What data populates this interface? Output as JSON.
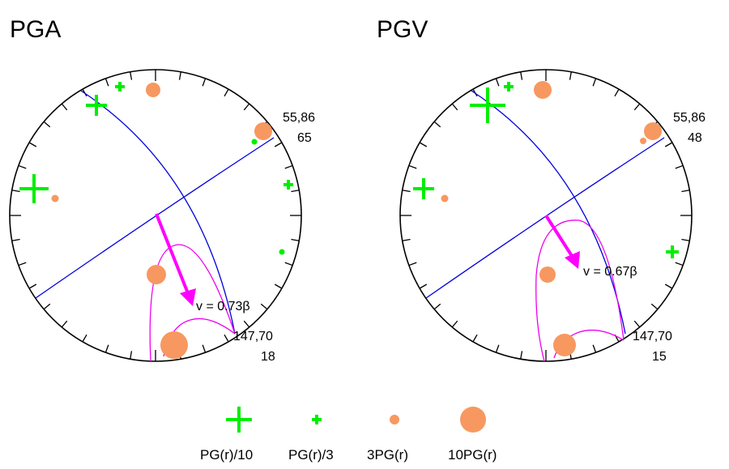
{
  "panels": [
    {
      "title": "PGA",
      "plane1_label": "55,86",
      "plane1_value": "65",
      "plane2_label": "147,70",
      "plane2_value": "18",
      "velocity_label": "v = 0.73β"
    },
    {
      "title": "PGV",
      "plane1_label": "55,86",
      "plane1_value": "48",
      "plane2_label": "147,70",
      "plane2_value": "15",
      "velocity_label": "v = 0.67β"
    }
  ],
  "legend": {
    "items": [
      {
        "label": "PG(r)/10",
        "symbol": "large-plus"
      },
      {
        "label": "PG(r)/3",
        "symbol": "small-plus"
      },
      {
        "label": "3PG(r)",
        "symbol": "small-circle"
      },
      {
        "label": "10PG(r)",
        "symbol": "large-circle"
      }
    ]
  },
  "colors": {
    "plane": "#0000dd",
    "arrow": "#ff00ff",
    "contour": "#ee00ee",
    "under_marker": "#00ee00",
    "over_marker": "#f79860"
  }
}
